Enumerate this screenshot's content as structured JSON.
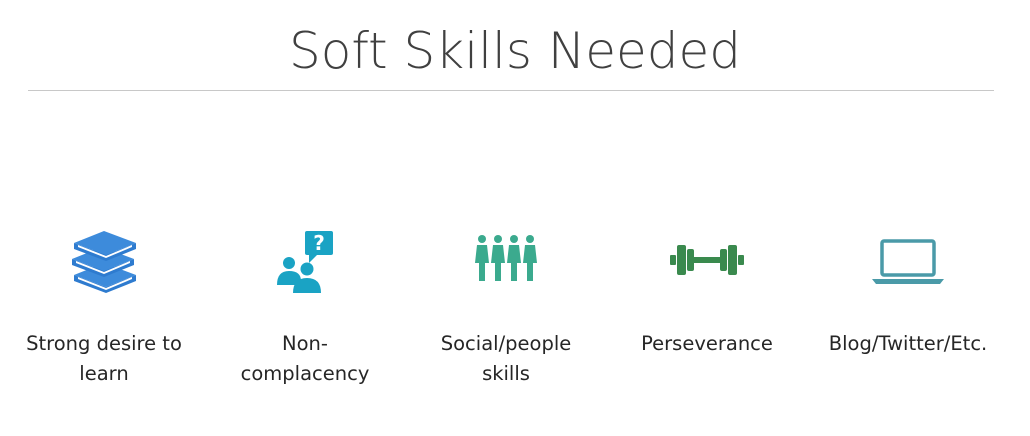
{
  "slide": {
    "title": "Soft Skills Needed"
  },
  "skills": [
    {
      "label": "Strong desire to\nlearn",
      "icon": "books-icon",
      "color": "#2E7BCF"
    },
    {
      "label": "Non-\ncomplacency",
      "icon": "questioning-people-icon",
      "color": "#1AA3C4"
    },
    {
      "label": "Social/people\nskills",
      "icon": "group-of-people-icon",
      "color": "#3BAA8E"
    },
    {
      "label": "Perseverance",
      "icon": "dumbbell-icon",
      "color": "#3A8A4E"
    },
    {
      "label": "Blog/Twitter/Etc.",
      "icon": "laptop-icon",
      "color": "#4A9AA8"
    }
  ]
}
